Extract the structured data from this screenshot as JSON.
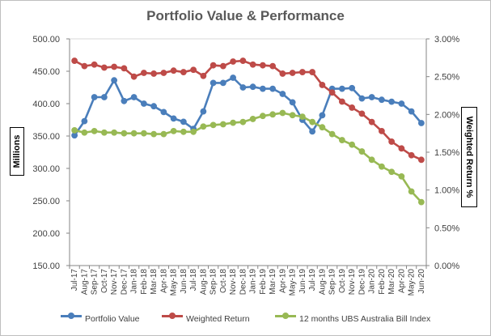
{
  "chart_data": {
    "type": "line",
    "title": "Portfolio Value & Performance",
    "ylabel_left": "Millions",
    "ylabel_right": "Weighted Return %",
    "ylim_left": [
      150,
      500
    ],
    "ylim_right": [
      0,
      3
    ],
    "yticks_left": [
      "150.00",
      "200.00",
      "250.00",
      "300.00",
      "350.00",
      "400.00",
      "450.00",
      "500.00"
    ],
    "yticks_right": [
      "0.00%",
      "0.50%",
      "1.00%",
      "1.50%",
      "2.00%",
      "2.50%",
      "3.00%"
    ],
    "categories": [
      "Jul-17",
      "Aug-17",
      "Sep-17",
      "Oct-17",
      "Nov-17",
      "Dec-17",
      "Jan-18",
      "Feb-18",
      "Mar-18",
      "Apr-18",
      "May-18",
      "Jun-18",
      "Jul-18",
      "Aug-18",
      "Sep-18",
      "Oct-18",
      "Nov-18",
      "Dec-18",
      "Jan-19",
      "Feb-19",
      "Mar-19",
      "Apr-19",
      "May-19",
      "Jun-19",
      "Jul-19",
      "Aug-19",
      "Sep-19",
      "Oct-19",
      "Nov-19",
      "Dec-19",
      "Jan-20",
      "Feb-20",
      "Mar-20",
      "Apr-20",
      "May-20",
      "Jun-20"
    ],
    "series": [
      {
        "name": "Portfolio Value",
        "axis": "left",
        "color": "#4a7ebb",
        "values": [
          351,
          373,
          410,
          410,
          436,
          404,
          410,
          400,
          396,
          387,
          377,
          372,
          361,
          388,
          432,
          432,
          440,
          425,
          426,
          423,
          423,
          415,
          402,
          375,
          357,
          382,
          423,
          423,
          424,
          408,
          410,
          406,
          403,
          400,
          388,
          370
        ]
      },
      {
        "name": "Weighted Return",
        "axis": "right",
        "color": "#be4b48",
        "values": [
          2.71,
          2.64,
          2.66,
          2.62,
          2.63,
          2.61,
          2.5,
          2.55,
          2.54,
          2.55,
          2.58,
          2.56,
          2.59,
          2.51,
          2.65,
          2.64,
          2.7,
          2.71,
          2.66,
          2.65,
          2.64,
          2.54,
          2.55,
          2.56,
          2.56,
          2.39,
          2.29,
          2.17,
          2.09,
          2.01,
          1.9,
          1.78,
          1.64,
          1.55,
          1.46,
          1.4
        ]
      },
      {
        "name": "12 months UBS Australia Bill Index",
        "axis": "right",
        "color": "#98b954",
        "values": [
          1.79,
          1.76,
          1.78,
          1.76,
          1.76,
          1.75,
          1.75,
          1.75,
          1.74,
          1.74,
          1.78,
          1.77,
          1.77,
          1.84,
          1.86,
          1.87,
          1.89,
          1.9,
          1.94,
          1.98,
          2.0,
          2.02,
          1.99,
          1.97,
          1.9,
          1.83,
          1.74,
          1.66,
          1.6,
          1.51,
          1.4,
          1.31,
          1.24,
          1.18,
          0.98,
          0.84
        ]
      }
    ]
  }
}
